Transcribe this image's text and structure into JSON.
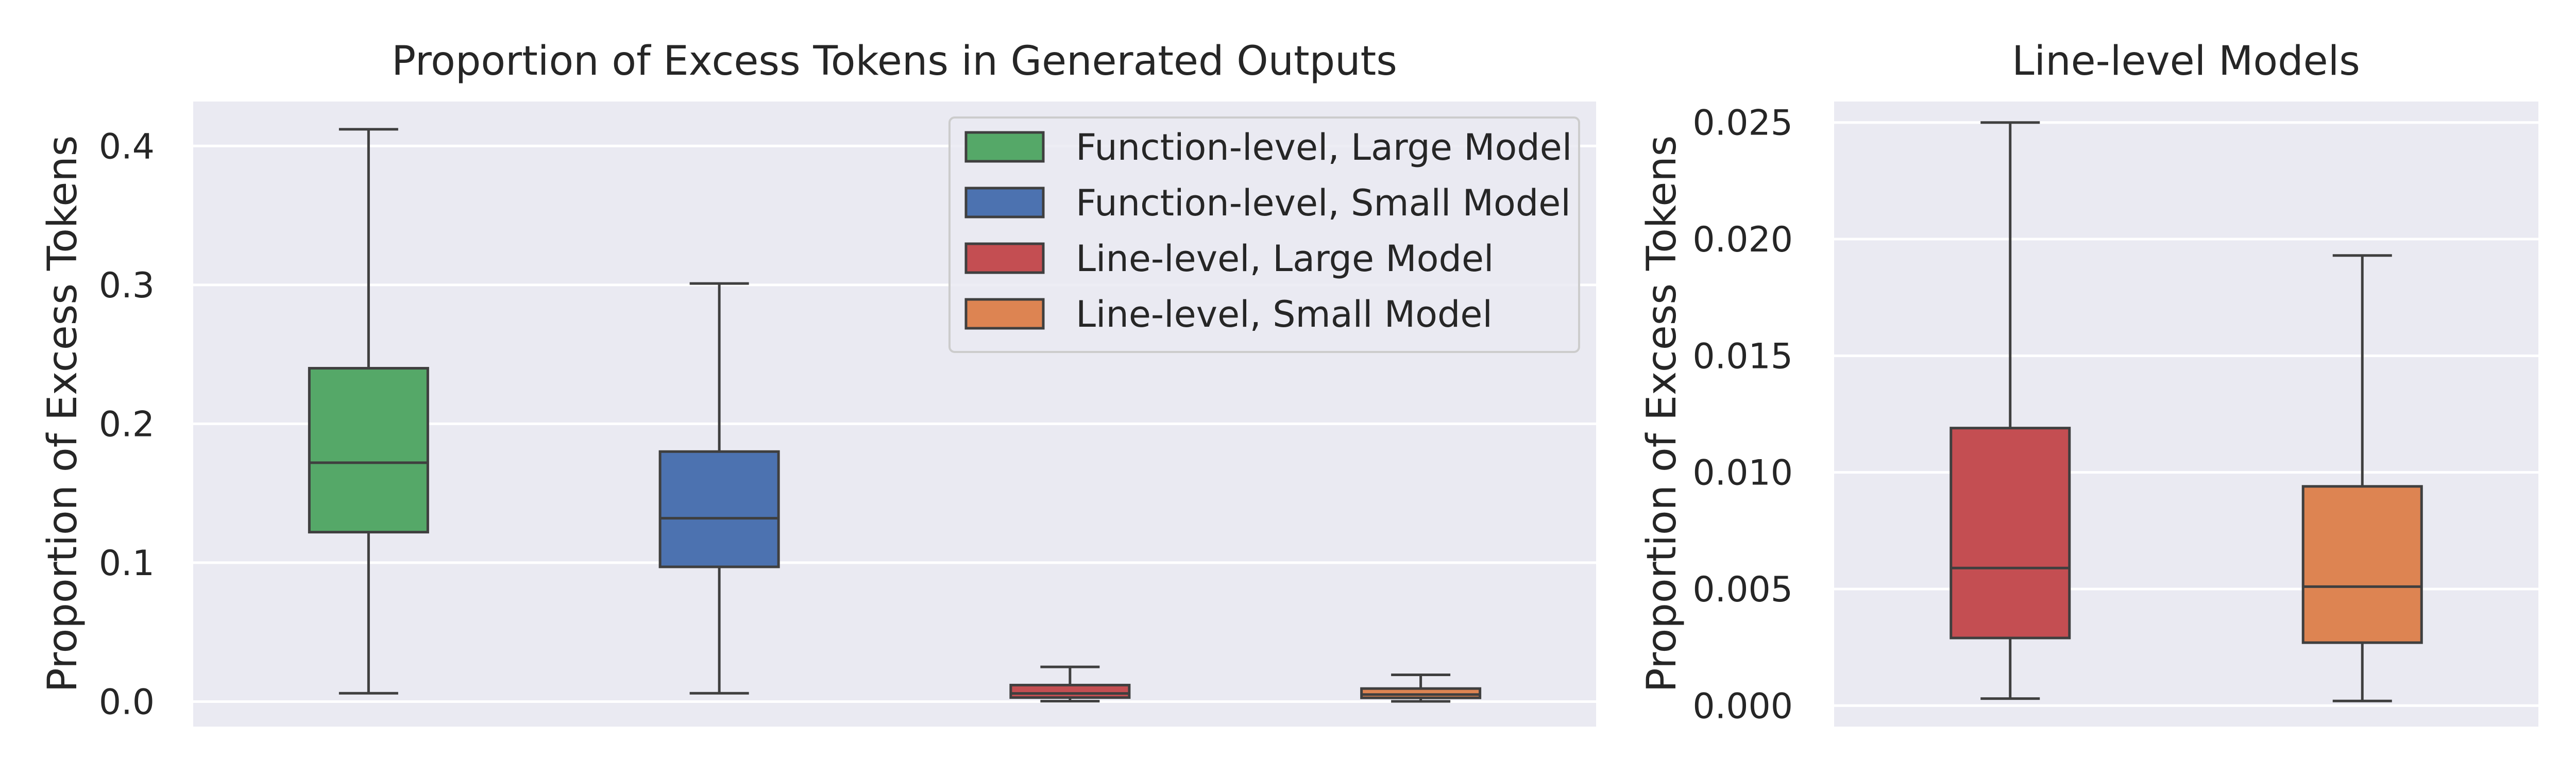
{
  "chart_data": [
    {
      "type": "box",
      "title": "Proportion of Excess Tokens in Generated Outputs",
      "xlabel": "",
      "ylabel": "Proportion of Excess Tokens",
      "ylim": [
        -0.018,
        0.432
      ],
      "yticks": [
        0.0,
        0.1,
        0.2,
        0.3,
        0.4
      ],
      "ytick_labels": [
        "0.0",
        "0.1",
        "0.2",
        "0.3",
        "0.4"
      ],
      "grid": true,
      "legend_position": "top-right",
      "series": [
        {
          "name": "Function-level, Large Model",
          "color": "#55A868",
          "whisker_low": 0.006,
          "q1": 0.122,
          "median": 0.172,
          "q3": 0.24,
          "whisker_high": 0.412
        },
        {
          "name": "Function-level, Small Model",
          "color": "#4C72B0",
          "whisker_low": 0.006,
          "q1": 0.097,
          "median": 0.132,
          "q3": 0.18,
          "whisker_high": 0.301
        },
        {
          "name": "Line-level, Large Model",
          "color": "#C44E52",
          "whisker_low": 0.0003,
          "q1": 0.0029,
          "median": 0.0059,
          "q3": 0.0119,
          "whisker_high": 0.025
        },
        {
          "name": "Line-level, Small Model",
          "color": "#DD8452",
          "whisker_low": 0.0002,
          "q1": 0.0027,
          "median": 0.0051,
          "q3": 0.0094,
          "whisker_high": 0.0193
        }
      ]
    },
    {
      "type": "box",
      "title": "Line-level Models",
      "xlabel": "",
      "ylabel": "Proportion of Excess Tokens",
      "ylim": [
        -0.0009,
        0.0259
      ],
      "yticks": [
        0.0,
        0.005,
        0.01,
        0.015,
        0.02,
        0.025
      ],
      "ytick_labels": [
        "0.000",
        "0.005",
        "0.010",
        "0.015",
        "0.020",
        "0.025"
      ],
      "grid": true,
      "series": [
        {
          "name": "Line-level, Large Model",
          "color": "#C44E52",
          "whisker_low": 0.0003,
          "q1": 0.0029,
          "median": 0.0059,
          "q3": 0.0119,
          "whisker_high": 0.025
        },
        {
          "name": "Line-level, Small Model",
          "color": "#DD8452",
          "whisker_low": 0.0002,
          "q1": 0.0027,
          "median": 0.0051,
          "q3": 0.0094,
          "whisker_high": 0.0193
        }
      ]
    }
  ]
}
